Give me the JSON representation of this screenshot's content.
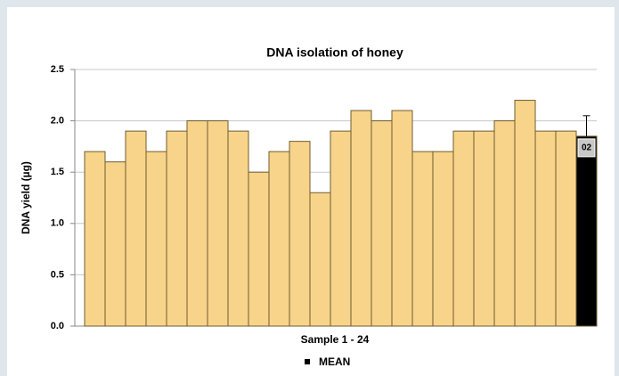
{
  "chart_data": {
    "type": "bar",
    "title": "DNA isolation of honey",
    "y_label": "DNA  yield (µg)",
    "x_label": "Sample 1 - 24",
    "categories": [
      null,
      null,
      null,
      null,
      null,
      null,
      null,
      null,
      null,
      null,
      null,
      null,
      null,
      null,
      null,
      null,
      null,
      null,
      null,
      null,
      null,
      null,
      null,
      null
    ],
    "values": [
      1.7,
      1.6,
      1.9,
      1.7,
      1.9,
      2.0,
      2.0,
      1.9,
      1.5,
      1.7,
      1.8,
      1.3,
      1.9,
      2.1,
      2.0,
      2.1,
      1.7,
      1.7,
      1.9,
      1.9,
      2.0,
      2.2,
      1.9,
      1.9
    ],
    "color": "#f8d48a",
    "mean": {
      "name": "MEAN",
      "value": 1.85,
      "error": 0.2,
      "color": "#000000",
      "annotation": "02"
    },
    "ylim": [
      0,
      2.5
    ],
    "yticks": [
      {
        "value": 0,
        "label": "0.0"
      },
      0.5,
      {
        "value": 1,
        "label": "1.0"
      },
      1.5,
      {
        "value": 2,
        "label": "2.0"
      },
      2.5
    ],
    "grid": true
  }
}
